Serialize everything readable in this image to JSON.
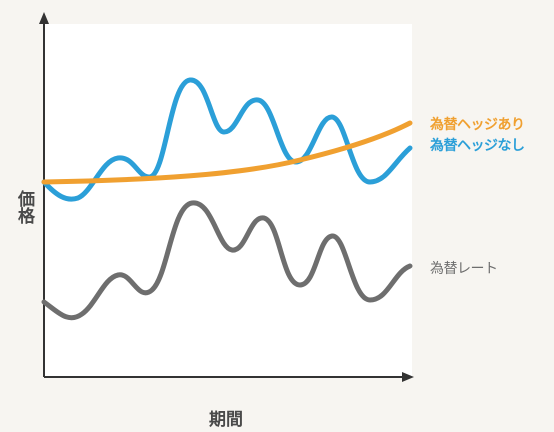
{
  "axes": {
    "y_label": "価格",
    "x_label": "期間"
  },
  "legend": {
    "hedged": "為替ヘッジあり",
    "unhedged": "為替ヘッジなし",
    "fx_rate": "為替レート"
  },
  "colors": {
    "hedged": "#f0a030",
    "unhedged": "#2b9fd8",
    "fx_rate": "#6e6e6e",
    "axis": "#333333",
    "panel": "#ffffff"
  }
}
